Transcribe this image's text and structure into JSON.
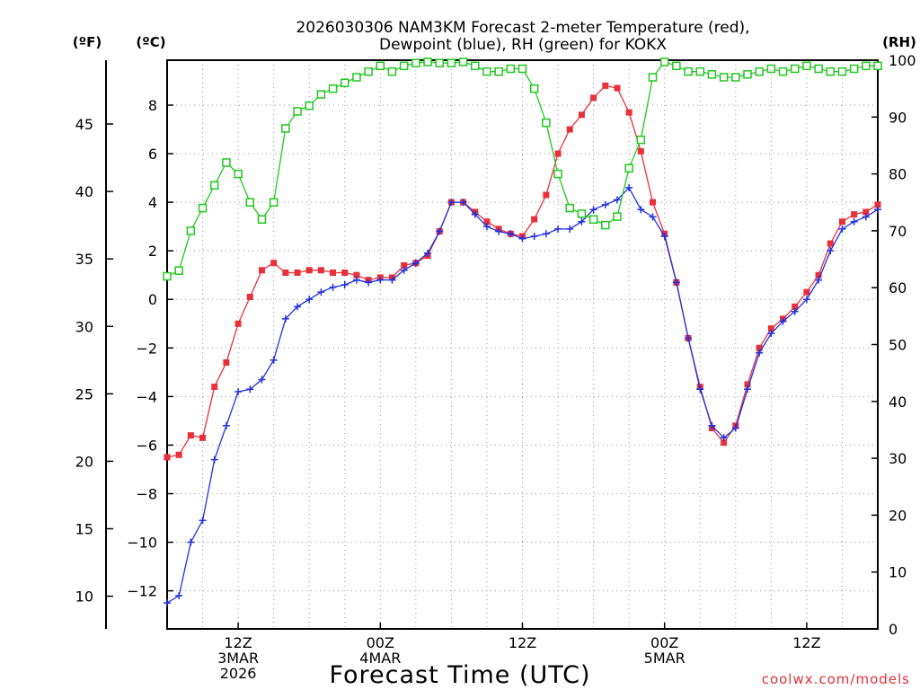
{
  "chart_data": {
    "type": "line",
    "title": [
      "2026030306 NAM3KM Forecast 2-meter Temperature (red),",
      "Dewpoint (blue), RH (green) for KOKX"
    ],
    "xlabel": "Forecast Time (UTC)",
    "watermark": "coolwx.com/models",
    "units": {
      "fahrenheit": "(ºF)",
      "celsius": "(ºC)",
      "rh": "(RH)"
    },
    "x_range_hours": [
      0,
      60
    ],
    "celsius_range": [
      -13,
      9.5
    ],
    "rh_range": [
      0,
      100
    ],
    "x_ticks": [
      {
        "hour": 6,
        "lines": [
          "12Z",
          "3MAR",
          "2026"
        ]
      },
      {
        "hour": 18,
        "lines": [
          "00Z",
          "4MAR"
        ]
      },
      {
        "hour": 30,
        "lines": [
          "12Z"
        ]
      },
      {
        "hour": 42,
        "lines": [
          "00Z",
          "5MAR"
        ]
      },
      {
        "hour": 54,
        "lines": [
          "12Z"
        ]
      }
    ],
    "celsius_ticks": [
      8,
      6,
      4,
      2,
      0,
      -2,
      -4,
      -6,
      -8,
      -10,
      -12
    ],
    "celsius_tick_labels": [
      "8",
      "6",
      "4",
      "2",
      "0",
      "−2",
      "−4",
      "−6",
      "−8",
      "−10",
      "−12"
    ],
    "fahrenheit_ticks": [
      45,
      40,
      35,
      30,
      25,
      20,
      15,
      10
    ],
    "rh_ticks": [
      100,
      90,
      80,
      70,
      60,
      50,
      40,
      30,
      20,
      10,
      0
    ],
    "series": [
      {
        "name": "Temperature",
        "color": "#e8303a",
        "marker": "filled-square",
        "hours": [
          0,
          1,
          2,
          3,
          4,
          5,
          6,
          7,
          8,
          9,
          10,
          11,
          12,
          13,
          14,
          15,
          16,
          17,
          18,
          19,
          20,
          21,
          22,
          23,
          24,
          25,
          26,
          27,
          28,
          29,
          30,
          31,
          32,
          33,
          34,
          35,
          36,
          37,
          38,
          39,
          40,
          41,
          42,
          43,
          44,
          45,
          46,
          47,
          48,
          49,
          50,
          51,
          52,
          53,
          54,
          55,
          56,
          57,
          58,
          59,
          60
        ],
        "values": [
          -6.5,
          -6.4,
          -5.6,
          -5.7,
          -3.6,
          -2.6,
          -1.0,
          0.1,
          1.2,
          1.5,
          1.1,
          1.1,
          1.2,
          1.2,
          1.1,
          1.1,
          1.0,
          0.8,
          0.9,
          0.9,
          1.4,
          1.5,
          1.8,
          2.8,
          4.0,
          4.0,
          3.6,
          3.2,
          2.9,
          2.7,
          2.6,
          3.3,
          4.3,
          6.0,
          7.0,
          7.6,
          8.3,
          8.8,
          8.7,
          7.7,
          6.1,
          4.0,
          2.7,
          0.7,
          -1.6,
          -3.6,
          -5.3,
          -5.9,
          -5.2,
          -3.5,
          -2.0,
          -1.2,
          -0.8,
          -0.3,
          0.3,
          1.0,
          2.3,
          3.2,
          3.5,
          3.6,
          3.9
        ]
      },
      {
        "name": "Dewpoint",
        "color": "#2030e0",
        "marker": "plus",
        "hours": [
          0,
          1,
          2,
          3,
          4,
          5,
          6,
          7,
          8,
          9,
          10,
          11,
          12,
          13,
          14,
          15,
          16,
          17,
          18,
          19,
          20,
          21,
          22,
          23,
          24,
          25,
          26,
          27,
          28,
          29,
          30,
          31,
          32,
          33,
          34,
          35,
          36,
          37,
          38,
          39,
          40,
          41,
          42,
          43,
          44,
          45,
          46,
          47,
          48,
          49,
          50,
          51,
          52,
          53,
          54,
          55,
          56,
          57,
          58,
          59,
          60
        ],
        "values": [
          -12.5,
          -12.2,
          -10.0,
          -9.1,
          -6.6,
          -5.2,
          -3.8,
          -3.7,
          -3.3,
          -2.5,
          -0.8,
          -0.3,
          0.0,
          0.3,
          0.5,
          0.6,
          0.8,
          0.7,
          0.8,
          0.8,
          1.2,
          1.5,
          1.9,
          2.8,
          4.0,
          4.0,
          3.5,
          3.0,
          2.8,
          2.7,
          2.5,
          2.6,
          2.7,
          2.9,
          2.9,
          3.2,
          3.7,
          3.9,
          4.1,
          4.6,
          3.7,
          3.4,
          2.6,
          0.7,
          -1.6,
          -3.7,
          -5.2,
          -5.7,
          -5.3,
          -3.7,
          -2.2,
          -1.4,
          -0.9,
          -0.5,
          0.0,
          0.8,
          2.0,
          2.9,
          3.2,
          3.4,
          3.7
        ]
      },
      {
        "name": "RH",
        "color": "#20c820",
        "marker": "open-square",
        "hours": [
          0,
          1,
          2,
          3,
          4,
          5,
          6,
          7,
          8,
          9,
          10,
          11,
          12,
          13,
          14,
          15,
          16,
          17,
          18,
          19,
          20,
          21,
          22,
          23,
          24,
          25,
          26,
          27,
          28,
          29,
          30,
          31,
          32,
          33,
          34,
          35,
          36,
          37,
          38,
          39,
          40,
          41,
          42,
          43,
          44,
          45,
          46,
          47,
          48,
          49,
          50,
          51,
          52,
          53,
          54,
          55,
          56,
          57,
          58,
          59,
          60
        ],
        "values": [
          62,
          63,
          70,
          74,
          78,
          82,
          80,
          75,
          72,
          75,
          88,
          91,
          92,
          94,
          95,
          96,
          97,
          98,
          99,
          98,
          99,
          99.5,
          99.7,
          99.5,
          99.5,
          99.7,
          99,
          98,
          98,
          98.5,
          98.5,
          95,
          89,
          80,
          74,
          73,
          72,
          71,
          72.5,
          81,
          86,
          97,
          99.7,
          99,
          98,
          98,
          97.5,
          97,
          97,
          97.5,
          98,
          98.5,
          98,
          98.5,
          99,
          98.5,
          98,
          98,
          98.5,
          99,
          99
        ]
      }
    ]
  }
}
